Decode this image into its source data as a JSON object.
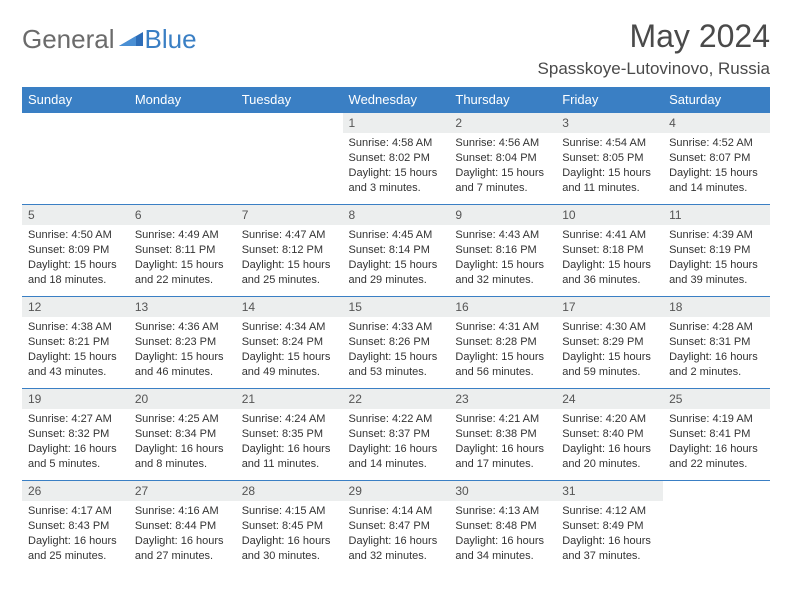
{
  "colors": {
    "header_bg": "#3a7fc4",
    "header_text": "#ffffff",
    "daynum_bg": "#eceeee",
    "daynum_text": "#555555",
    "body_text": "#333333",
    "logo_gray": "#6b6b6b",
    "logo_blue": "#3a7fc4",
    "title_text": "#4a4a4a",
    "border": "#3a7fc4"
  },
  "logo": {
    "general": "General",
    "blue": "Blue"
  },
  "title": "May 2024",
  "location": "Spasskoye-Lutovinovo, Russia",
  "weekdays": [
    "Sunday",
    "Monday",
    "Tuesday",
    "Wednesday",
    "Thursday",
    "Friday",
    "Saturday"
  ],
  "weeks": [
    [
      {
        "day": "",
        "sunrise": "",
        "sunset": "",
        "daylight": ""
      },
      {
        "day": "",
        "sunrise": "",
        "sunset": "",
        "daylight": ""
      },
      {
        "day": "",
        "sunrise": "",
        "sunset": "",
        "daylight": ""
      },
      {
        "day": "1",
        "sunrise": "Sunrise: 4:58 AM",
        "sunset": "Sunset: 8:02 PM",
        "daylight": "Daylight: 15 hours and 3 minutes."
      },
      {
        "day": "2",
        "sunrise": "Sunrise: 4:56 AM",
        "sunset": "Sunset: 8:04 PM",
        "daylight": "Daylight: 15 hours and 7 minutes."
      },
      {
        "day": "3",
        "sunrise": "Sunrise: 4:54 AM",
        "sunset": "Sunset: 8:05 PM",
        "daylight": "Daylight: 15 hours and 11 minutes."
      },
      {
        "day": "4",
        "sunrise": "Sunrise: 4:52 AM",
        "sunset": "Sunset: 8:07 PM",
        "daylight": "Daylight: 15 hours and 14 minutes."
      }
    ],
    [
      {
        "day": "5",
        "sunrise": "Sunrise: 4:50 AM",
        "sunset": "Sunset: 8:09 PM",
        "daylight": "Daylight: 15 hours and 18 minutes."
      },
      {
        "day": "6",
        "sunrise": "Sunrise: 4:49 AM",
        "sunset": "Sunset: 8:11 PM",
        "daylight": "Daylight: 15 hours and 22 minutes."
      },
      {
        "day": "7",
        "sunrise": "Sunrise: 4:47 AM",
        "sunset": "Sunset: 8:12 PM",
        "daylight": "Daylight: 15 hours and 25 minutes."
      },
      {
        "day": "8",
        "sunrise": "Sunrise: 4:45 AM",
        "sunset": "Sunset: 8:14 PM",
        "daylight": "Daylight: 15 hours and 29 minutes."
      },
      {
        "day": "9",
        "sunrise": "Sunrise: 4:43 AM",
        "sunset": "Sunset: 8:16 PM",
        "daylight": "Daylight: 15 hours and 32 minutes."
      },
      {
        "day": "10",
        "sunrise": "Sunrise: 4:41 AM",
        "sunset": "Sunset: 8:18 PM",
        "daylight": "Daylight: 15 hours and 36 minutes."
      },
      {
        "day": "11",
        "sunrise": "Sunrise: 4:39 AM",
        "sunset": "Sunset: 8:19 PM",
        "daylight": "Daylight: 15 hours and 39 minutes."
      }
    ],
    [
      {
        "day": "12",
        "sunrise": "Sunrise: 4:38 AM",
        "sunset": "Sunset: 8:21 PM",
        "daylight": "Daylight: 15 hours and 43 minutes."
      },
      {
        "day": "13",
        "sunrise": "Sunrise: 4:36 AM",
        "sunset": "Sunset: 8:23 PM",
        "daylight": "Daylight: 15 hours and 46 minutes."
      },
      {
        "day": "14",
        "sunrise": "Sunrise: 4:34 AM",
        "sunset": "Sunset: 8:24 PM",
        "daylight": "Daylight: 15 hours and 49 minutes."
      },
      {
        "day": "15",
        "sunrise": "Sunrise: 4:33 AM",
        "sunset": "Sunset: 8:26 PM",
        "daylight": "Daylight: 15 hours and 53 minutes."
      },
      {
        "day": "16",
        "sunrise": "Sunrise: 4:31 AM",
        "sunset": "Sunset: 8:28 PM",
        "daylight": "Daylight: 15 hours and 56 minutes."
      },
      {
        "day": "17",
        "sunrise": "Sunrise: 4:30 AM",
        "sunset": "Sunset: 8:29 PM",
        "daylight": "Daylight: 15 hours and 59 minutes."
      },
      {
        "day": "18",
        "sunrise": "Sunrise: 4:28 AM",
        "sunset": "Sunset: 8:31 PM",
        "daylight": "Daylight: 16 hours and 2 minutes."
      }
    ],
    [
      {
        "day": "19",
        "sunrise": "Sunrise: 4:27 AM",
        "sunset": "Sunset: 8:32 PM",
        "daylight": "Daylight: 16 hours and 5 minutes."
      },
      {
        "day": "20",
        "sunrise": "Sunrise: 4:25 AM",
        "sunset": "Sunset: 8:34 PM",
        "daylight": "Daylight: 16 hours and 8 minutes."
      },
      {
        "day": "21",
        "sunrise": "Sunrise: 4:24 AM",
        "sunset": "Sunset: 8:35 PM",
        "daylight": "Daylight: 16 hours and 11 minutes."
      },
      {
        "day": "22",
        "sunrise": "Sunrise: 4:22 AM",
        "sunset": "Sunset: 8:37 PM",
        "daylight": "Daylight: 16 hours and 14 minutes."
      },
      {
        "day": "23",
        "sunrise": "Sunrise: 4:21 AM",
        "sunset": "Sunset: 8:38 PM",
        "daylight": "Daylight: 16 hours and 17 minutes."
      },
      {
        "day": "24",
        "sunrise": "Sunrise: 4:20 AM",
        "sunset": "Sunset: 8:40 PM",
        "daylight": "Daylight: 16 hours and 20 minutes."
      },
      {
        "day": "25",
        "sunrise": "Sunrise: 4:19 AM",
        "sunset": "Sunset: 8:41 PM",
        "daylight": "Daylight: 16 hours and 22 minutes."
      }
    ],
    [
      {
        "day": "26",
        "sunrise": "Sunrise: 4:17 AM",
        "sunset": "Sunset: 8:43 PM",
        "daylight": "Daylight: 16 hours and 25 minutes."
      },
      {
        "day": "27",
        "sunrise": "Sunrise: 4:16 AM",
        "sunset": "Sunset: 8:44 PM",
        "daylight": "Daylight: 16 hours and 27 minutes."
      },
      {
        "day": "28",
        "sunrise": "Sunrise: 4:15 AM",
        "sunset": "Sunset: 8:45 PM",
        "daylight": "Daylight: 16 hours and 30 minutes."
      },
      {
        "day": "29",
        "sunrise": "Sunrise: 4:14 AM",
        "sunset": "Sunset: 8:47 PM",
        "daylight": "Daylight: 16 hours and 32 minutes."
      },
      {
        "day": "30",
        "sunrise": "Sunrise: 4:13 AM",
        "sunset": "Sunset: 8:48 PM",
        "daylight": "Daylight: 16 hours and 34 minutes."
      },
      {
        "day": "31",
        "sunrise": "Sunrise: 4:12 AM",
        "sunset": "Sunset: 8:49 PM",
        "daylight": "Daylight: 16 hours and 37 minutes."
      },
      {
        "day": "",
        "sunrise": "",
        "sunset": "",
        "daylight": ""
      }
    ]
  ]
}
